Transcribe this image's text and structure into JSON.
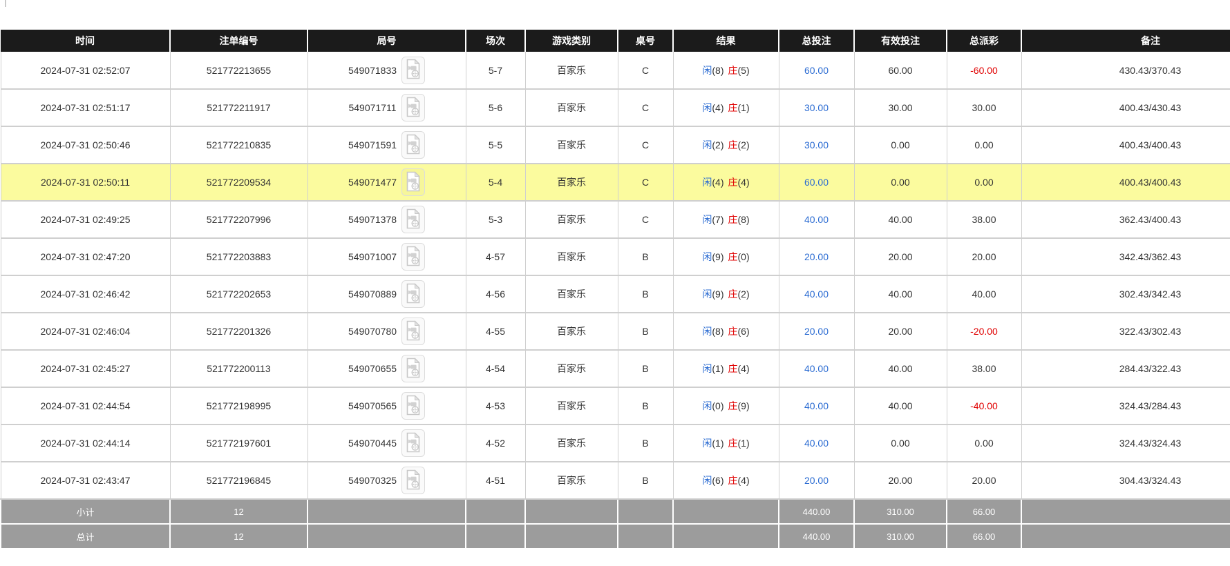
{
  "colors": {
    "header_bg": "#1b1b1b",
    "highlight_row": "#fbfb9e",
    "footer_bg": "#9c9c9c",
    "player_blue": "#2a6bd2",
    "banker_red": "#e00000",
    "negative_red": "#e00000",
    "grid_border": "#cfcfcf"
  },
  "table": {
    "columns": [
      {
        "key": "time",
        "label": "时间"
      },
      {
        "key": "order_no",
        "label": "注单编号"
      },
      {
        "key": "round_no",
        "label": "局号"
      },
      {
        "key": "session",
        "label": "场次"
      },
      {
        "key": "game",
        "label": "游戏类别"
      },
      {
        "key": "table_no",
        "label": "桌号"
      },
      {
        "key": "result",
        "label": "结果"
      },
      {
        "key": "total_bet",
        "label": "总投注"
      },
      {
        "key": "valid_bet",
        "label": "有效投注"
      },
      {
        "key": "payout",
        "label": "总派彩"
      },
      {
        "key": "remark",
        "label": "备注"
      }
    ],
    "result_labels": {
      "player": "闲",
      "banker": "庄"
    },
    "icons": {
      "round_video": "video-file-icon"
    },
    "rows": [
      {
        "time": "2024-07-31 02:52:07",
        "order_no": "521772213655",
        "round_no": "549071833",
        "session": "5-7",
        "game": "百家乐",
        "table_no": "C",
        "player": "8",
        "banker": "5",
        "total_bet": "60.00",
        "valid_bet": "60.00",
        "payout": "-60.00",
        "remark": "430.43/370.43",
        "highlighted": false
      },
      {
        "time": "2024-07-31 02:51:17",
        "order_no": "521772211917",
        "round_no": "549071711",
        "session": "5-6",
        "game": "百家乐",
        "table_no": "C",
        "player": "4",
        "banker": "1",
        "total_bet": "30.00",
        "valid_bet": "30.00",
        "payout": "30.00",
        "remark": "400.43/430.43",
        "highlighted": false
      },
      {
        "time": "2024-07-31 02:50:46",
        "order_no": "521772210835",
        "round_no": "549071591",
        "session": "5-5",
        "game": "百家乐",
        "table_no": "C",
        "player": "2",
        "banker": "2",
        "total_bet": "30.00",
        "valid_bet": "0.00",
        "payout": "0.00",
        "remark": "400.43/400.43",
        "highlighted": false
      },
      {
        "time": "2024-07-31 02:50:11",
        "order_no": "521772209534",
        "round_no": "549071477",
        "session": "5-4",
        "game": "百家乐",
        "table_no": "C",
        "player": "4",
        "banker": "4",
        "total_bet": "60.00",
        "valid_bet": "0.00",
        "payout": "0.00",
        "remark": "400.43/400.43",
        "highlighted": true
      },
      {
        "time": "2024-07-31 02:49:25",
        "order_no": "521772207996",
        "round_no": "549071378",
        "session": "5-3",
        "game": "百家乐",
        "table_no": "C",
        "player": "7",
        "banker": "8",
        "total_bet": "40.00",
        "valid_bet": "40.00",
        "payout": "38.00",
        "remark": "362.43/400.43",
        "highlighted": false
      },
      {
        "time": "2024-07-31 02:47:20",
        "order_no": "521772203883",
        "round_no": "549071007",
        "session": "4-57",
        "game": "百家乐",
        "table_no": "B",
        "player": "9",
        "banker": "0",
        "total_bet": "20.00",
        "valid_bet": "20.00",
        "payout": "20.00",
        "remark": "342.43/362.43",
        "highlighted": false
      },
      {
        "time": "2024-07-31 02:46:42",
        "order_no": "521772202653",
        "round_no": "549070889",
        "session": "4-56",
        "game": "百家乐",
        "table_no": "B",
        "player": "9",
        "banker": "2",
        "total_bet": "40.00",
        "valid_bet": "40.00",
        "payout": "40.00",
        "remark": "302.43/342.43",
        "highlighted": false
      },
      {
        "time": "2024-07-31 02:46:04",
        "order_no": "521772201326",
        "round_no": "549070780",
        "session": "4-55",
        "game": "百家乐",
        "table_no": "B",
        "player": "8",
        "banker": "6",
        "total_bet": "20.00",
        "valid_bet": "20.00",
        "payout": "-20.00",
        "remark": "322.43/302.43",
        "highlighted": false
      },
      {
        "time": "2024-07-31 02:45:27",
        "order_no": "521772200113",
        "round_no": "549070655",
        "session": "4-54",
        "game": "百家乐",
        "table_no": "B",
        "player": "1",
        "banker": "4",
        "total_bet": "40.00",
        "valid_bet": "40.00",
        "payout": "38.00",
        "remark": "284.43/322.43",
        "highlighted": false
      },
      {
        "time": "2024-07-31 02:44:54",
        "order_no": "521772198995",
        "round_no": "549070565",
        "session": "4-53",
        "game": "百家乐",
        "table_no": "B",
        "player": "0",
        "banker": "9",
        "total_bet": "40.00",
        "valid_bet": "40.00",
        "payout": "-40.00",
        "remark": "324.43/284.43",
        "highlighted": false
      },
      {
        "time": "2024-07-31 02:44:14",
        "order_no": "521772197601",
        "round_no": "549070445",
        "session": "4-52",
        "game": "百家乐",
        "table_no": "B",
        "player": "1",
        "banker": "1",
        "total_bet": "40.00",
        "valid_bet": "0.00",
        "payout": "0.00",
        "remark": "324.43/324.43",
        "highlighted": false
      },
      {
        "time": "2024-07-31 02:43:47",
        "order_no": "521772196845",
        "round_no": "549070325",
        "session": "4-51",
        "game": "百家乐",
        "table_no": "B",
        "player": "6",
        "banker": "4",
        "total_bet": "20.00",
        "valid_bet": "20.00",
        "payout": "20.00",
        "remark": "304.43/324.43",
        "highlighted": false
      }
    ],
    "footer": [
      {
        "label": "小计",
        "count": "12",
        "total_bet": "440.00",
        "valid_bet": "310.00",
        "payout": "66.00"
      },
      {
        "label": "总计",
        "count": "12",
        "total_bet": "440.00",
        "valid_bet": "310.00",
        "payout": "66.00"
      }
    ]
  }
}
